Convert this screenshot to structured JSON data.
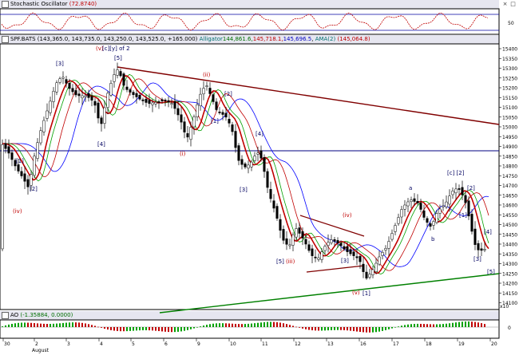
{
  "stoch_pane": {
    "title": "Stochastic Oscillator",
    "value": "(72.8740)",
    "levels": [
      "80",
      "50"
    ]
  },
  "price_pane": {
    "symbol": "SPF.BATS",
    "ohlc": "(143,365.0, 143,735.0, 143,250.0, 143,525.0, +165.000)",
    "indicator": "Alligator",
    "ind_values": [
      "144,861.6,",
      "145,718.1,",
      "145,696.5"
    ],
    "ama_label": "AMA(2)",
    "ama_value": "(145,064.8)",
    "y_ticks": [
      "15400",
      "15350",
      "15300",
      "15250",
      "15200",
      "15150",
      "15100",
      "15050",
      "15000",
      "14950",
      "14900",
      "14850",
      "14800",
      "14750",
      "14700",
      "14650",
      "14600",
      "14550",
      "14500",
      "14450",
      "14400",
      "14350",
      "14300",
      "14250",
      "14200",
      "14150",
      "14100"
    ],
    "y_scale_note": "x10",
    "wave_labels": [
      {
        "t": "(v)",
        "c": "red",
        "x": 120,
        "y": 63
      },
      {
        "t": "[c][y] of 2",
        "c": "blue",
        "x": 128,
        "y": 63
      },
      {
        "t": "[5]",
        "c": "blue",
        "x": 143,
        "y": 75
      },
      {
        "t": "[3]",
        "c": "blue",
        "x": 70,
        "y": 82
      },
      {
        "t": "(ii)",
        "c": "red",
        "x": 254,
        "y": 96
      },
      {
        "t": "[2]",
        "c": "blue",
        "x": 281,
        "y": 120
      },
      {
        "t": "[1]",
        "c": "blue",
        "x": 264,
        "y": 154
      },
      {
        "t": "(i)",
        "c": "red",
        "x": 225,
        "y": 195
      },
      {
        "t": "[4]",
        "c": "blue",
        "x": 122,
        "y": 183
      },
      {
        "t": "[4]",
        "c": "blue",
        "x": 320,
        "y": 170
      },
      {
        "t": "[3]",
        "c": "blue",
        "x": 300,
        "y": 240
      },
      {
        "t": "[1]",
        "c": "blue",
        "x": 20,
        "y": 204
      },
      {
        "t": "[2]",
        "c": "blue",
        "x": 37,
        "y": 239
      },
      {
        "t": "(iv)",
        "c": "red",
        "x": 16,
        "y": 267
      },
      {
        "t": "(iv)",
        "c": "red",
        "x": 429,
        "y": 272
      },
      {
        "t": "[5]",
        "c": "blue",
        "x": 346,
        "y": 330
      },
      {
        "t": "(iii)",
        "c": "red",
        "x": 358,
        "y": 330
      },
      {
        "t": "[3]",
        "c": "blue",
        "x": 427,
        "y": 329
      },
      {
        "t": "(v)",
        "c": "red",
        "x": 441,
        "y": 369
      },
      {
        "t": "[1]",
        "c": "blue",
        "x": 454,
        "y": 370
      },
      {
        "t": "a",
        "c": "blue",
        "x": 512,
        "y": 238
      },
      {
        "t": "b",
        "c": "blue",
        "x": 540,
        "y": 302
      },
      {
        "t": "[c] [2]",
        "c": "blue",
        "x": 560,
        "y": 219
      },
      {
        "t": "[2]",
        "c": "blue",
        "x": 585,
        "y": 238
      },
      {
        "t": "[1]",
        "c": "blue",
        "x": 575,
        "y": 272
      },
      {
        "t": "[4]",
        "c": "blue",
        "x": 606,
        "y": 293
      },
      {
        "t": "[3]",
        "c": "blue",
        "x": 593,
        "y": 327
      },
      {
        "t": "[5]",
        "c": "blue",
        "x": 610,
        "y": 343
      }
    ]
  },
  "ao_pane": {
    "title": "AO",
    "value": "(-1.35884, 0.0000)",
    "level": "0"
  },
  "x_axis": {
    "month": "August",
    "labels": [
      "30",
      "2",
      "3",
      "4",
      "5",
      "6",
      "9",
      "10",
      "11",
      "12",
      "13",
      "16",
      "17",
      "18",
      "19",
      "20"
    ]
  },
  "colors": {
    "bg": "#ffffff",
    "candle": "#000000",
    "stoch_line": "#c00000",
    "jaw": "#0000ff",
    "teeth": "#c00000",
    "lips": "#00a000",
    "ama": "#c00000",
    "trendline_upper": "#800000",
    "trendline_lower": "#008000",
    "horizontal_line": "#000080"
  }
}
